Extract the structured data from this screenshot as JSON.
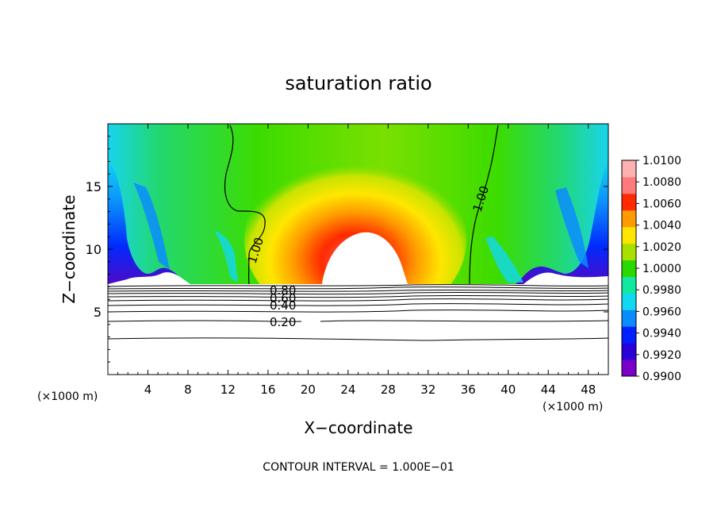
{
  "chart_data": {
    "type": "heatmap",
    "title": "saturation ratio",
    "xlabel": "X−coordinate",
    "ylabel": "Z−coordinate",
    "x_unit_label_left": "(×1000 m)",
    "x_unit_label_right": "(×1000 m)",
    "xlim": [
      0,
      50
    ],
    "ylim": [
      0,
      20
    ],
    "x_ticks": [
      "4",
      "8",
      "12",
      "16",
      "20",
      "24",
      "28",
      "32",
      "36",
      "40",
      "44",
      "48"
    ],
    "y_ticks": [
      "5",
      "10",
      "15"
    ],
    "colorbar": {
      "labels": [
        "0.9900",
        "0.9920",
        "0.9940",
        "0.9960",
        "0.9980",
        "1.0000",
        "1.0020",
        "1.0040",
        "1.0060",
        "1.0080",
        "1.0100"
      ],
      "colors": [
        "#7a00c8",
        "#2a00d8",
        "#0020ff",
        "#0a8cff",
        "#12d8f0",
        "#12e8a0",
        "#2bd800",
        "#a8e000",
        "#ffe600",
        "#ff9a00",
        "#ff2a00",
        "#ff7a7a",
        "#ffb0b0"
      ]
    },
    "contour_labels": [
      "1.00",
      "1.00",
      "0.80",
      "0.60",
      "0.40",
      "0.20"
    ],
    "footer": "CONTOUR INTERVAL = 1.000E−01"
  }
}
